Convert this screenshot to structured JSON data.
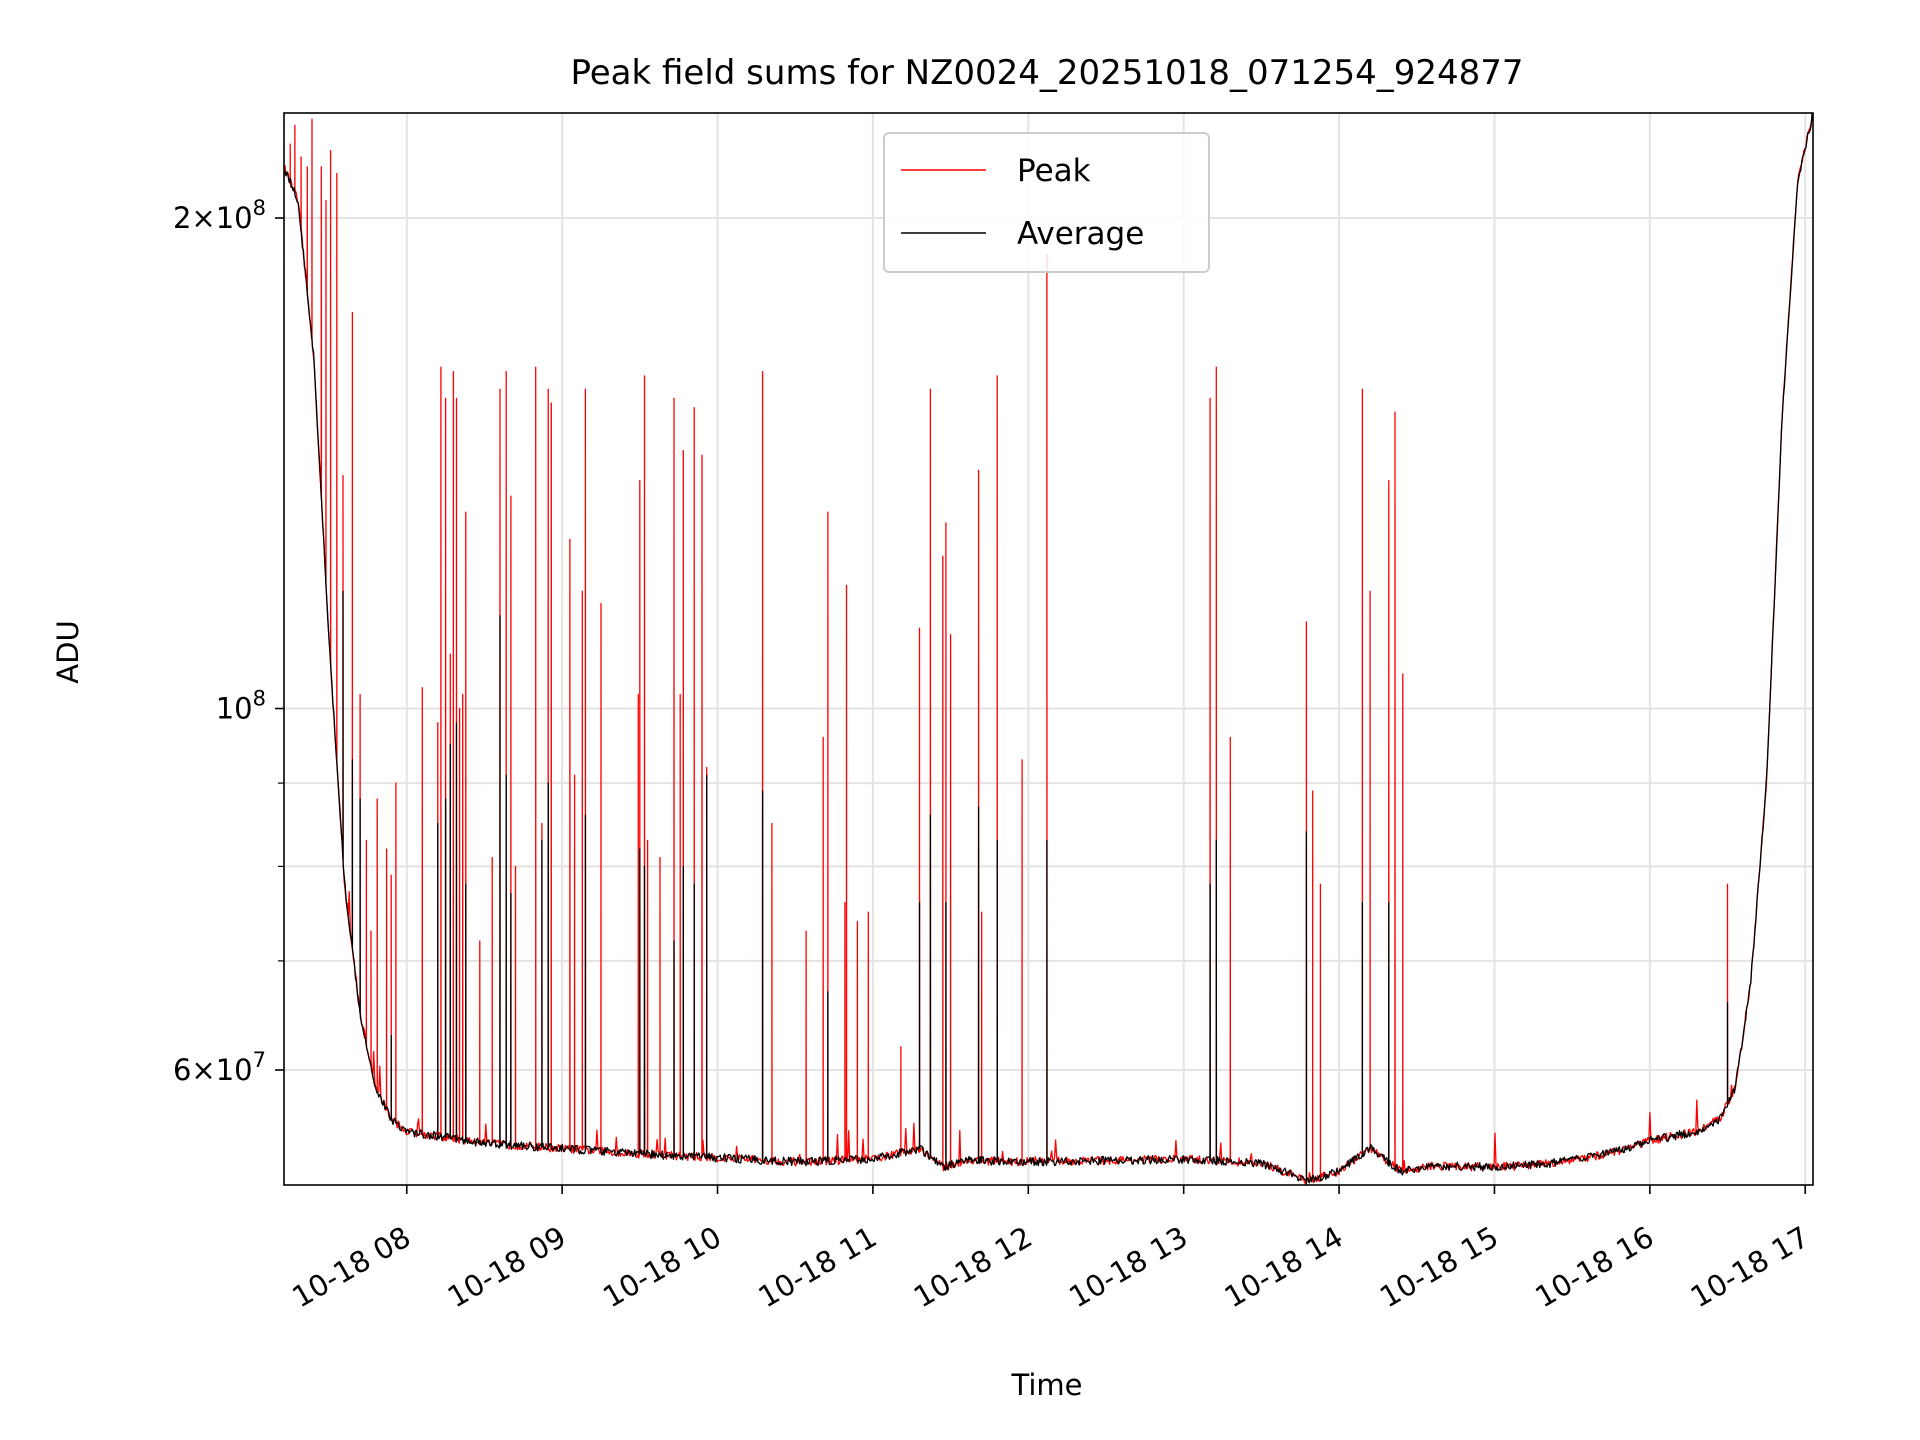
{
  "chart_data": {
    "type": "line",
    "title": "Peak field sums for NZ0024_20251018_071254_924877",
    "xlabel": "Time",
    "ylabel": "ADU",
    "yscale": "log",
    "xlim": [
      7.21,
      17.05
    ],
    "ylim": [
      51000000,
      232000000
    ],
    "grid": true,
    "legend_position": "top-center",
    "x_ticks": [
      {
        "value": 8,
        "label": "10-18 08"
      },
      {
        "value": 9,
        "label": "10-18 09"
      },
      {
        "value": 10,
        "label": "10-18 10"
      },
      {
        "value": 11,
        "label": "10-18 11"
      },
      {
        "value": 12,
        "label": "10-18 12"
      },
      {
        "value": 13,
        "label": "10-18 13"
      },
      {
        "value": 14,
        "label": "10-18 14"
      },
      {
        "value": 15,
        "label": "10-18 15"
      },
      {
        "value": 16,
        "label": "10-18 16"
      },
      {
        "value": 17,
        "label": "10-18 17"
      }
    ],
    "y_major_ticks": [
      {
        "value": 60000000,
        "mantissa": "6",
        "exponent": "7"
      },
      {
        "value": 100000000,
        "mantissa": "",
        "exponent": "8"
      },
      {
        "value": 200000000,
        "mantissa": "2",
        "exponent": "8"
      }
    ],
    "y_minor_ticks": [
      70000000,
      80000000,
      90000000
    ],
    "baseline_trend": [
      {
        "t": 7.21,
        "v": 215000000
      },
      {
        "t": 7.3,
        "v": 205000000
      },
      {
        "t": 7.4,
        "v": 165000000
      },
      {
        "t": 7.5,
        "v": 110000000
      },
      {
        "t": 7.6,
        "v": 78000000
      },
      {
        "t": 7.7,
        "v": 65000000
      },
      {
        "t": 7.8,
        "v": 58500000
      },
      {
        "t": 7.9,
        "v": 56000000
      },
      {
        "t": 8.0,
        "v": 55000000
      },
      {
        "t": 8.5,
        "v": 54100000
      },
      {
        "t": 9.0,
        "v": 53700000
      },
      {
        "t": 9.5,
        "v": 53300000
      },
      {
        "t": 10.0,
        "v": 53000000
      },
      {
        "t": 10.5,
        "v": 52700000
      },
      {
        "t": 11.0,
        "v": 52900000
      },
      {
        "t": 11.3,
        "v": 53700000
      },
      {
        "t": 11.45,
        "v": 52300000
      },
      {
        "t": 11.6,
        "v": 52800000
      },
      {
        "t": 12.0,
        "v": 52700000
      },
      {
        "t": 12.5,
        "v": 52800000
      },
      {
        "t": 13.0,
        "v": 52900000
      },
      {
        "t": 13.5,
        "v": 52600000
      },
      {
        "t": 13.8,
        "v": 51300000
      },
      {
        "t": 14.0,
        "v": 52000000
      },
      {
        "t": 14.2,
        "v": 53700000
      },
      {
        "t": 14.4,
        "v": 52000000
      },
      {
        "t": 14.6,
        "v": 52400000
      },
      {
        "t": 15.0,
        "v": 52300000
      },
      {
        "t": 15.3,
        "v": 52500000
      },
      {
        "t": 15.6,
        "v": 53000000
      },
      {
        "t": 15.8,
        "v": 53500000
      },
      {
        "t": 16.0,
        "v": 54300000
      },
      {
        "t": 16.3,
        "v": 55000000
      },
      {
        "t": 16.45,
        "v": 56000000
      },
      {
        "t": 16.55,
        "v": 58500000
      },
      {
        "t": 16.65,
        "v": 68000000
      },
      {
        "t": 16.75,
        "v": 90000000
      },
      {
        "t": 16.85,
        "v": 150000000
      },
      {
        "t": 16.95,
        "v": 210000000
      },
      {
        "t": 17.05,
        "v": 232000000
      }
    ],
    "series": [
      {
        "name": "Peak",
        "color": "#ff0000",
        "spikes": [
          {
            "t": 7.25,
            "v": 222000000
          },
          {
            "t": 7.28,
            "v": 228000000
          },
          {
            "t": 7.32,
            "v": 218000000
          },
          {
            "t": 7.36,
            "v": 215000000
          },
          {
            "t": 7.39,
            "v": 230000000
          },
          {
            "t": 7.45,
            "v": 215000000
          },
          {
            "t": 7.48,
            "v": 205000000
          },
          {
            "t": 7.51,
            "v": 220000000
          },
          {
            "t": 7.55,
            "v": 213000000
          },
          {
            "t": 7.59,
            "v": 139000000
          },
          {
            "t": 7.65,
            "v": 175000000
          },
          {
            "t": 7.7,
            "v": 102000000
          },
          {
            "t": 7.74,
            "v": 83000000
          },
          {
            "t": 7.77,
            "v": 73000000
          },
          {
            "t": 7.81,
            "v": 88000000
          },
          {
            "t": 7.87,
            "v": 82000000
          },
          {
            "t": 7.9,
            "v": 79000000
          },
          {
            "t": 7.93,
            "v": 90000000
          },
          {
            "t": 8.1,
            "v": 103000000
          },
          {
            "t": 8.2,
            "v": 98000000
          },
          {
            "t": 8.22,
            "v": 162000000
          },
          {
            "t": 8.25,
            "v": 155000000
          },
          {
            "t": 8.28,
            "v": 108000000
          },
          {
            "t": 8.3,
            "v": 161000000
          },
          {
            "t": 8.32,
            "v": 155000000
          },
          {
            "t": 8.34,
            "v": 100000000
          },
          {
            "t": 8.36,
            "v": 102000000
          },
          {
            "t": 8.38,
            "v": 132000000
          },
          {
            "t": 8.47,
            "v": 72000000
          },
          {
            "t": 8.55,
            "v": 81000000
          },
          {
            "t": 8.6,
            "v": 157000000
          },
          {
            "t": 8.64,
            "v": 161000000
          },
          {
            "t": 8.67,
            "v": 135000000
          },
          {
            "t": 8.7,
            "v": 80000000
          },
          {
            "t": 8.83,
            "v": 162000000
          },
          {
            "t": 8.87,
            "v": 85000000
          },
          {
            "t": 8.91,
            "v": 157000000
          },
          {
            "t": 8.93,
            "v": 154000000
          },
          {
            "t": 9.05,
            "v": 127000000
          },
          {
            "t": 9.08,
            "v": 91000000
          },
          {
            "t": 9.13,
            "v": 118000000
          },
          {
            "t": 9.15,
            "v": 157000000
          },
          {
            "t": 9.25,
            "v": 116000000
          },
          {
            "t": 9.49,
            "v": 102000000
          },
          {
            "t": 9.5,
            "v": 138000000
          },
          {
            "t": 9.53,
            "v": 160000000
          },
          {
            "t": 9.55,
            "v": 83000000
          },
          {
            "t": 9.63,
            "v": 81000000
          },
          {
            "t": 9.72,
            "v": 155000000
          },
          {
            "t": 9.76,
            "v": 102000000
          },
          {
            "t": 9.78,
            "v": 144000000
          },
          {
            "t": 9.85,
            "v": 153000000
          },
          {
            "t": 9.9,
            "v": 143000000
          },
          {
            "t": 9.93,
            "v": 92000000
          },
          {
            "t": 10.29,
            "v": 161000000
          },
          {
            "t": 10.35,
            "v": 85000000
          },
          {
            "t": 10.57,
            "v": 73000000
          },
          {
            "t": 10.68,
            "v": 96000000
          },
          {
            "t": 10.71,
            "v": 132000000
          },
          {
            "t": 10.82,
            "v": 76000000
          },
          {
            "t": 10.83,
            "v": 119000000
          },
          {
            "t": 10.9,
            "v": 74000000
          },
          {
            "t": 10.97,
            "v": 75000000
          },
          {
            "t": 11.18,
            "v": 62000000
          },
          {
            "t": 11.3,
            "v": 112000000
          },
          {
            "t": 11.37,
            "v": 157000000
          },
          {
            "t": 11.45,
            "v": 124000000
          },
          {
            "t": 11.47,
            "v": 130000000
          },
          {
            "t": 11.5,
            "v": 111000000
          },
          {
            "t": 11.68,
            "v": 140000000
          },
          {
            "t": 11.7,
            "v": 75000000
          },
          {
            "t": 11.8,
            "v": 160000000
          },
          {
            "t": 11.96,
            "v": 93000000
          },
          {
            "t": 12.12,
            "v": 190000000
          },
          {
            "t": 13.17,
            "v": 155000000
          },
          {
            "t": 13.21,
            "v": 162000000
          },
          {
            "t": 13.3,
            "v": 96000000
          },
          {
            "t": 13.79,
            "v": 113000000
          },
          {
            "t": 13.83,
            "v": 89000000
          },
          {
            "t": 13.88,
            "v": 78000000
          },
          {
            "t": 14.15,
            "v": 157000000
          },
          {
            "t": 14.2,
            "v": 118000000
          },
          {
            "t": 14.32,
            "v": 138000000
          },
          {
            "t": 14.36,
            "v": 152000000
          },
          {
            "t": 14.41,
            "v": 105000000
          },
          {
            "t": 16.5,
            "v": 78000000
          }
        ]
      },
      {
        "name": "Average",
        "color": "#000000",
        "spikes": [
          {
            "t": 7.59,
            "v": 118000000
          },
          {
            "t": 7.65,
            "v": 93000000
          },
          {
            "t": 7.7,
            "v": 88000000
          },
          {
            "t": 7.9,
            "v": 63000000
          },
          {
            "t": 8.2,
            "v": 85000000
          },
          {
            "t": 8.25,
            "v": 88000000
          },
          {
            "t": 8.28,
            "v": 95000000
          },
          {
            "t": 8.32,
            "v": 98000000
          },
          {
            "t": 8.38,
            "v": 78000000
          },
          {
            "t": 8.6,
            "v": 114000000
          },
          {
            "t": 8.64,
            "v": 91000000
          },
          {
            "t": 8.67,
            "v": 77000000
          },
          {
            "t": 8.87,
            "v": 83000000
          },
          {
            "t": 8.91,
            "v": 90000000
          },
          {
            "t": 9.15,
            "v": 86000000
          },
          {
            "t": 9.5,
            "v": 82000000
          },
          {
            "t": 9.53,
            "v": 80000000
          },
          {
            "t": 9.72,
            "v": 72000000
          },
          {
            "t": 9.78,
            "v": 80000000
          },
          {
            "t": 9.85,
            "v": 78000000
          },
          {
            "t": 9.93,
            "v": 91000000
          },
          {
            "t": 10.29,
            "v": 89000000
          },
          {
            "t": 10.71,
            "v": 67000000
          },
          {
            "t": 11.3,
            "v": 76000000
          },
          {
            "t": 11.37,
            "v": 86000000
          },
          {
            "t": 11.47,
            "v": 76000000
          },
          {
            "t": 11.68,
            "v": 87000000
          },
          {
            "t": 11.8,
            "v": 83000000
          },
          {
            "t": 12.12,
            "v": 83000000
          },
          {
            "t": 13.17,
            "v": 78000000
          },
          {
            "t": 13.21,
            "v": 83000000
          },
          {
            "t": 13.79,
            "v": 84000000
          },
          {
            "t": 14.15,
            "v": 76000000
          },
          {
            "t": 14.32,
            "v": 76000000
          },
          {
            "t": 16.5,
            "v": 66000000
          }
        ]
      }
    ]
  }
}
